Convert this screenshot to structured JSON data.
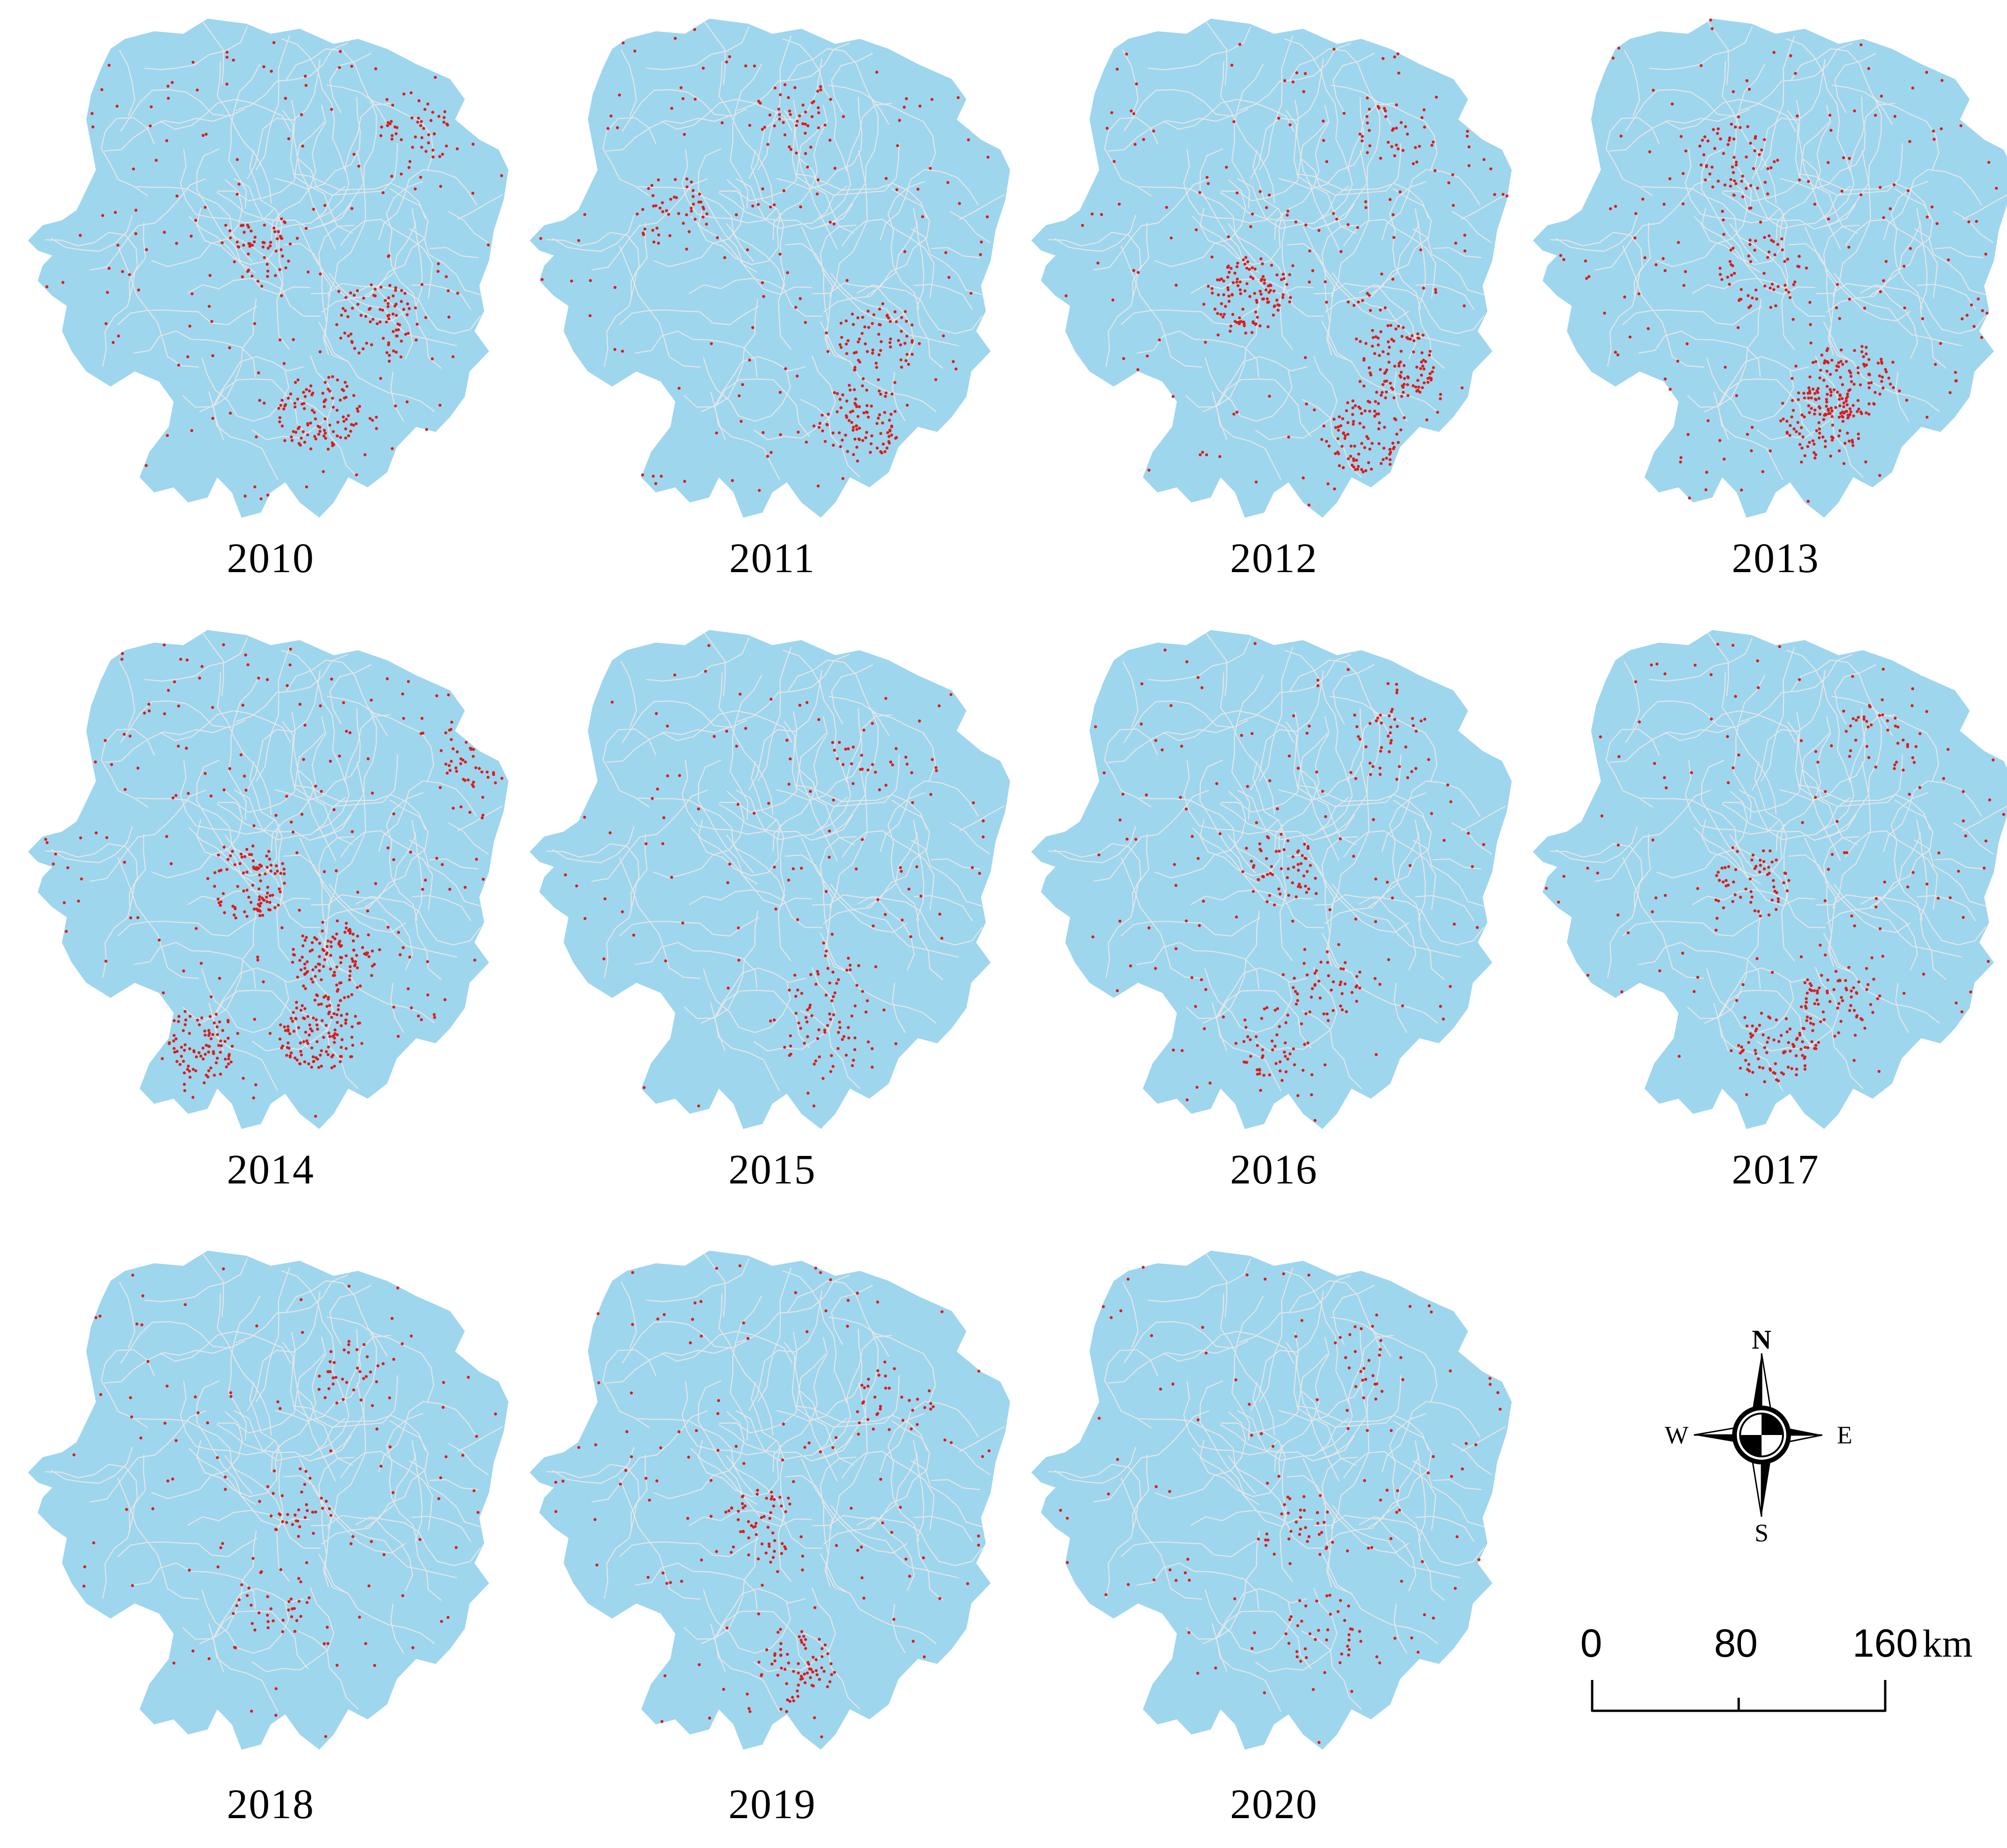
{
  "panels": [
    {
      "year": "2010",
      "hotspots": [
        [
          0.6,
          0.78,
          0.9
        ],
        [
          0.72,
          0.6,
          0.7
        ],
        [
          0.48,
          0.46,
          0.5
        ],
        [
          0.79,
          0.22,
          0.4
        ]
      ]
    },
    {
      "year": "2011",
      "hotspots": [
        [
          0.68,
          0.8,
          0.8
        ],
        [
          0.72,
          0.64,
          0.6
        ],
        [
          0.3,
          0.38,
          0.4
        ],
        [
          0.55,
          0.2,
          0.3
        ]
      ]
    },
    {
      "year": "2012",
      "hotspots": [
        [
          0.45,
          0.55,
          1.0
        ],
        [
          0.75,
          0.68,
          0.9
        ],
        [
          0.68,
          0.83,
          0.8
        ],
        [
          0.75,
          0.22,
          0.3
        ]
      ]
    },
    {
      "year": "2013",
      "hotspots": [
        [
          0.65,
          0.72,
          0.9
        ],
        [
          0.6,
          0.8,
          0.9
        ],
        [
          0.42,
          0.28,
          0.5
        ],
        [
          0.47,
          0.5,
          0.5
        ],
        [
          0.97,
          0.58,
          0.4
        ]
      ]
    },
    {
      "year": "2014",
      "hotspots": [
        [
          0.63,
          0.66,
          1.0
        ],
        [
          0.6,
          0.8,
          1.0
        ],
        [
          0.45,
          0.5,
          0.8
        ],
        [
          0.92,
          0.24,
          0.5
        ],
        [
          0.35,
          0.82,
          0.8
        ]
      ]
    },
    {
      "year": "2015",
      "hotspots": [
        [
          0.62,
          0.72,
          0.3
        ],
        [
          0.6,
          0.82,
          0.3
        ],
        [
          0.7,
          0.25,
          0.2
        ]
      ]
    },
    {
      "year": "2016",
      "hotspots": [
        [
          0.52,
          0.48,
          0.5
        ],
        [
          0.6,
          0.7,
          0.4
        ],
        [
          0.5,
          0.82,
          0.4
        ],
        [
          0.75,
          0.22,
          0.3
        ]
      ]
    },
    {
      "year": "2017",
      "hotspots": [
        [
          0.62,
          0.74,
          0.6
        ],
        [
          0.5,
          0.82,
          0.7
        ],
        [
          0.45,
          0.5,
          0.5
        ],
        [
          0.72,
          0.22,
          0.3
        ]
      ]
    },
    {
      "year": "2018",
      "hotspots": [
        [
          0.5,
          0.7,
          0.3
        ],
        [
          0.68,
          0.25,
          0.3
        ],
        [
          0.55,
          0.5,
          0.3
        ]
      ]
    },
    {
      "year": "2019",
      "hotspots": [
        [
          0.55,
          0.82,
          0.6
        ],
        [
          0.48,
          0.55,
          0.5
        ],
        [
          0.75,
          0.3,
          0.3
        ]
      ]
    },
    {
      "year": "2020",
      "hotspots": [
        [
          0.55,
          0.55,
          0.3
        ],
        [
          0.6,
          0.75,
          0.3
        ],
        [
          0.7,
          0.22,
          0.2
        ]
      ]
    }
  ],
  "compass": {
    "north": "N",
    "south": "S",
    "east": "E",
    "west": "W"
  },
  "scale": {
    "tick0": "0",
    "tick1": "80",
    "tick2": "160",
    "unit": "km"
  },
  "colors": {
    "land": "#9ed6ee",
    "boundary": "#e6e6e6",
    "point": "#e01a1a",
    "background": "#ffffff"
  }
}
